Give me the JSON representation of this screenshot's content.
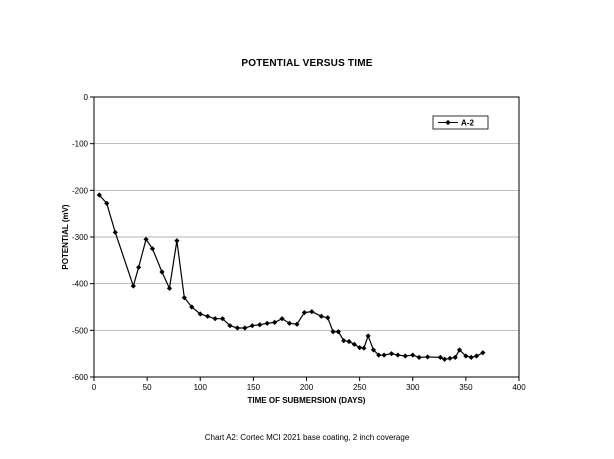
{
  "chart_data": {
    "type": "line",
    "title": "POTENTIAL VERSUS TIME",
    "xlabel": "TIME OF SUBMERSION (DAYS)",
    "ylabel": "POTENTIAL (mV)",
    "xlim": [
      0,
      400
    ],
    "ylim": [
      -600,
      0
    ],
    "xticks": [
      0,
      50,
      100,
      150,
      200,
      250,
      300,
      350,
      400
    ],
    "yticks": [
      0,
      -100,
      -200,
      -300,
      -400,
      -500,
      -600
    ],
    "grid": "horizontal",
    "legend_position": "top-right",
    "series": [
      {
        "name": "A-2",
        "marker": "diamond",
        "color": "#000000",
        "x": [
          5,
          12,
          20,
          37,
          42,
          49,
          55,
          64,
          71,
          78,
          85,
          92,
          100,
          107,
          114,
          121,
          128,
          135,
          142,
          149,
          156,
          163,
          170,
          177,
          184,
          191,
          198,
          205,
          214,
          220,
          225,
          230,
          235,
          240,
          245,
          250,
          254,
          258,
          263,
          268,
          273,
          280,
          286,
          293,
          300,
          306,
          314,
          326,
          330,
          335,
          340,
          344,
          350,
          355,
          360,
          366
        ],
        "y": [
          -210,
          -228,
          -290,
          -405,
          -365,
          -305,
          -325,
          -375,
          -410,
          -308,
          -430,
          -450,
          -465,
          -470,
          -475,
          -475,
          -490,
          -495,
          -495,
          -490,
          -488,
          -485,
          -483,
          -475,
          -485,
          -487,
          -462,
          -460,
          -470,
          -473,
          -503,
          -503,
          -522,
          -524,
          -530,
          -537,
          -538,
          -512,
          -542,
          -553,
          -553,
          -550,
          -553,
          -555,
          -553,
          -558,
          -557,
          -558,
          -562,
          -560,
          -558,
          -542,
          -555,
          -558,
          -555,
          -548
        ]
      }
    ]
  },
  "caption": "Chart A2: Cortec MCI 2021 base coating, 2 inch coverage"
}
